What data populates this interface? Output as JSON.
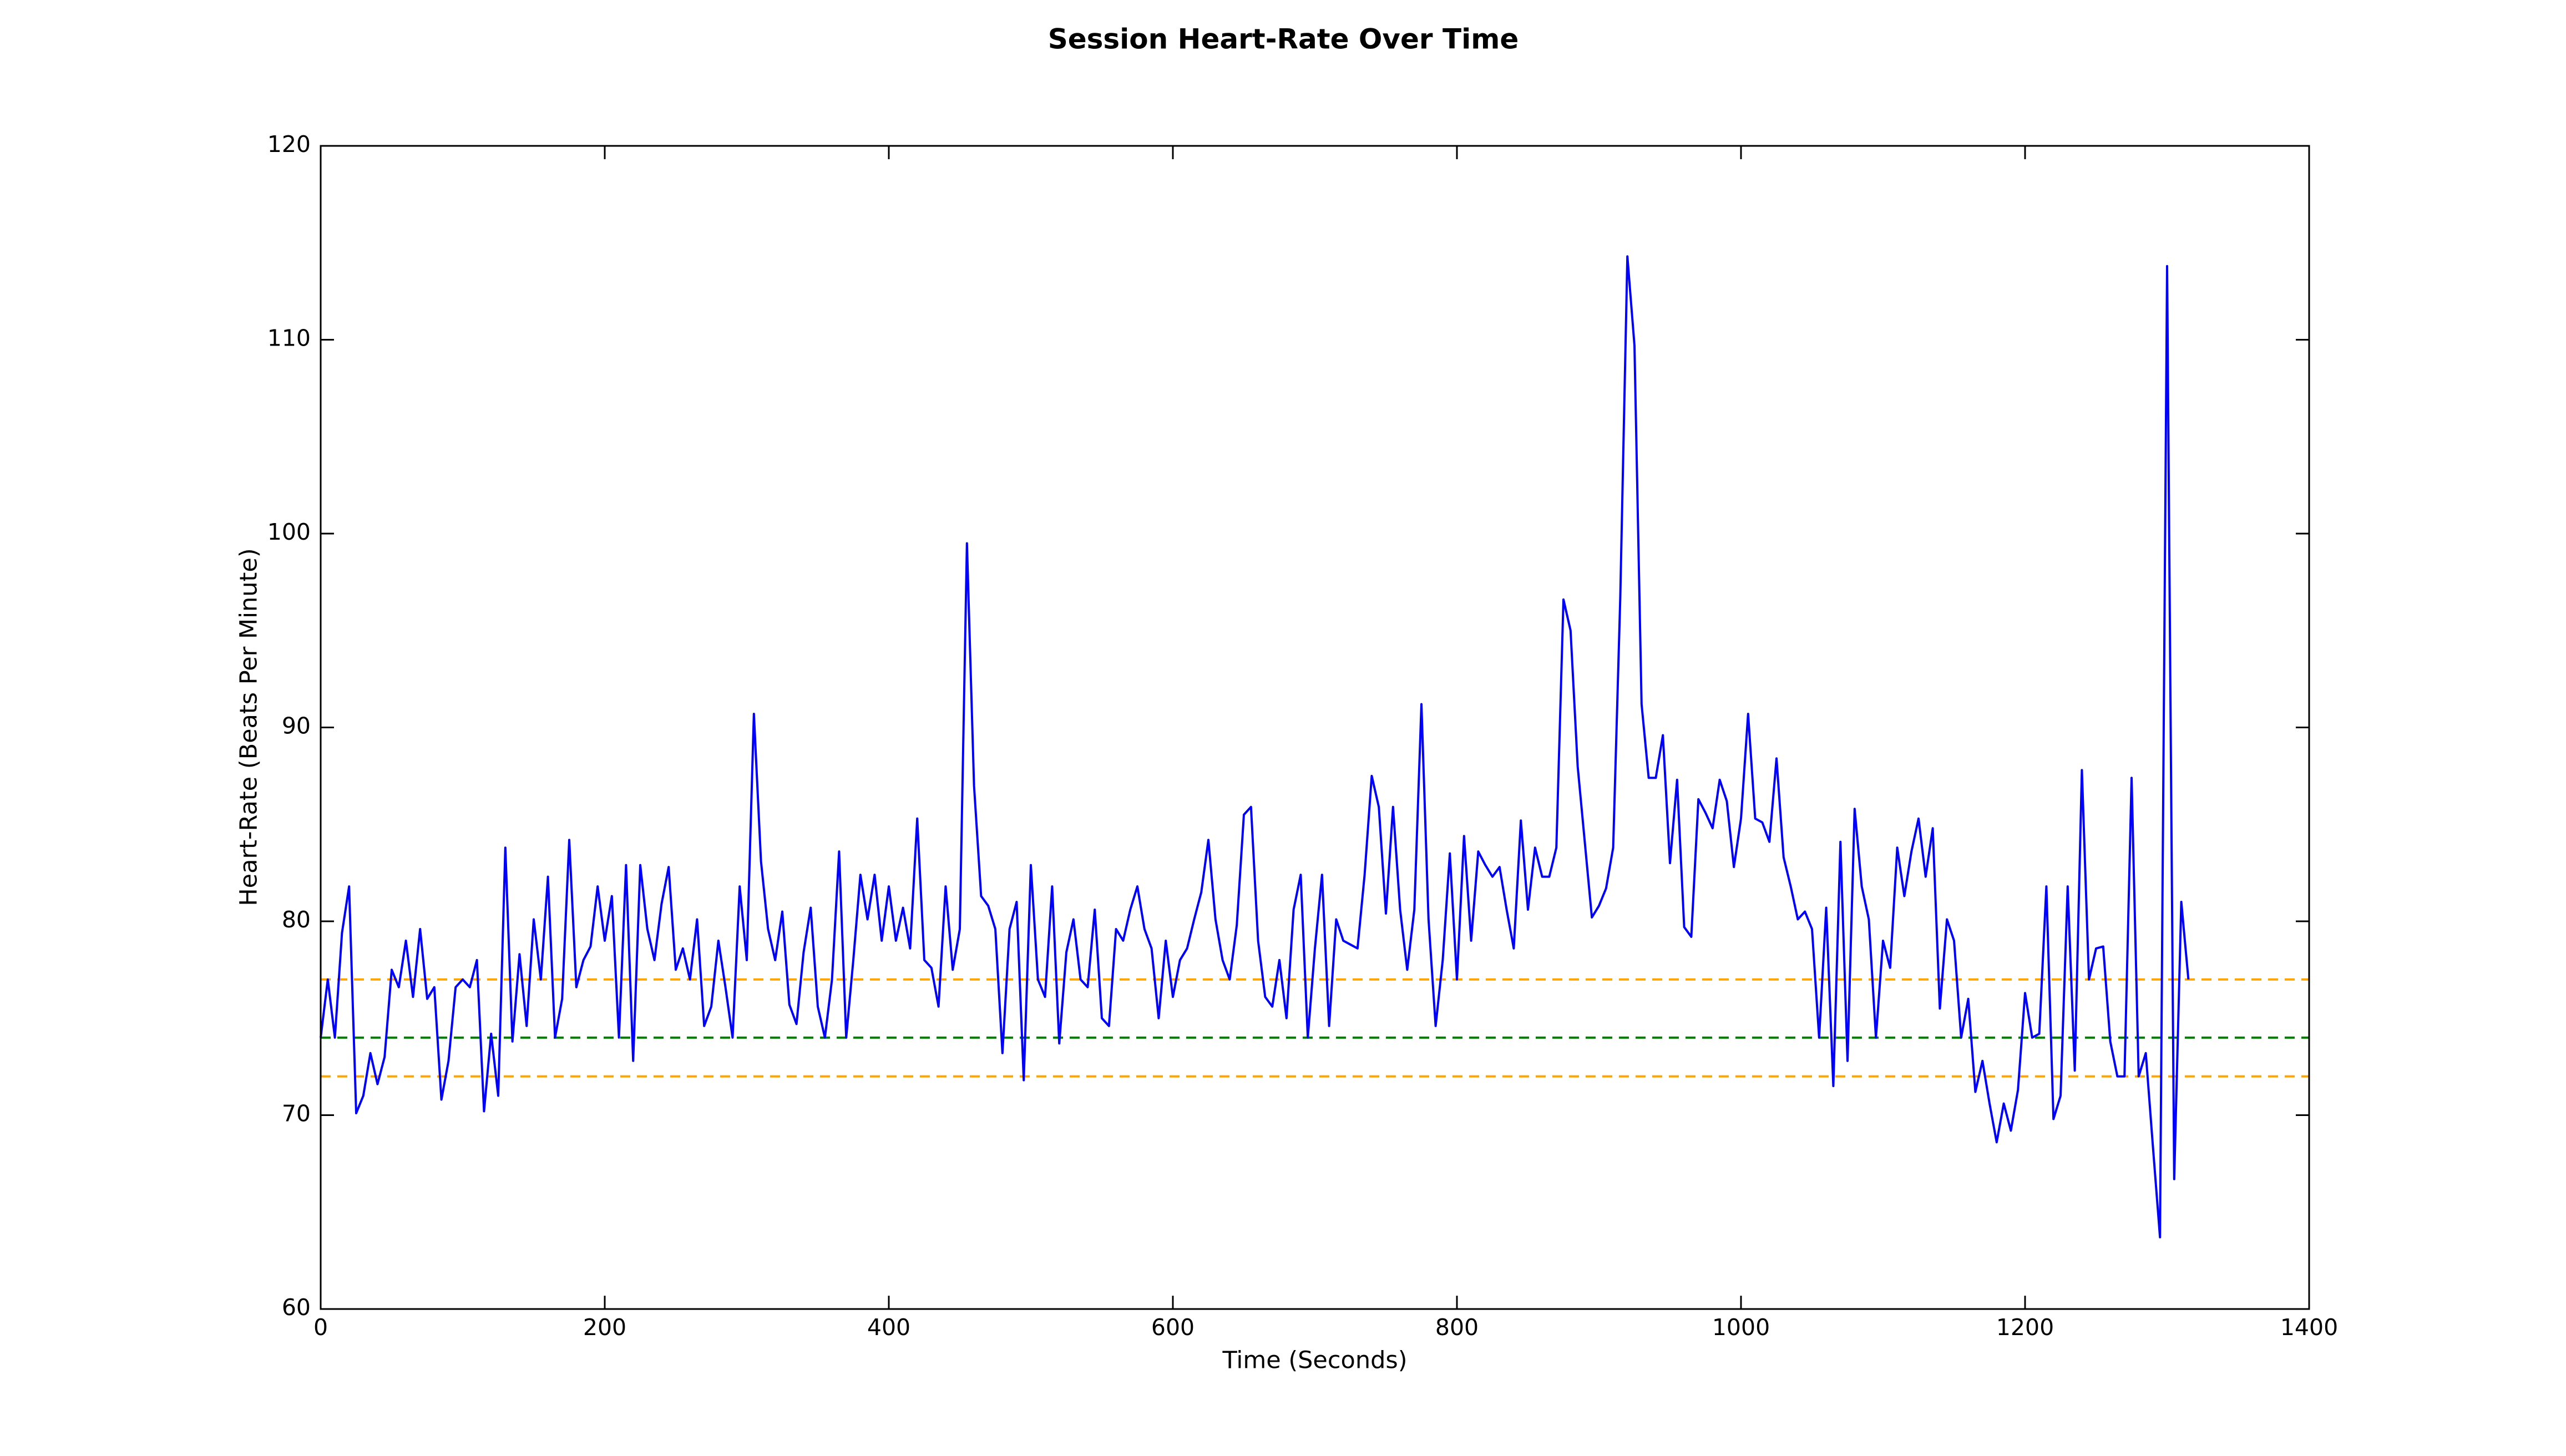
{
  "chart_data": {
    "type": "line",
    "title": "Session Heart-Rate Over Time",
    "x_label": "Time (Seconds)",
    "y_label": "Heart-Rate (Beats Per Minute)",
    "color": "#0000ff",
    "xlim": [
      0,
      1400
    ],
    "xticks": [
      0,
      200,
      400,
      600,
      800,
      1000,
      1200,
      1400
    ],
    "ylim": [
      60,
      120
    ],
    "yticks": [
      60,
      70,
      80,
      90,
      100,
      110,
      120
    ],
    "grid": false,
    "hlines": [
      {
        "value": 77,
        "color": "#ffa500",
        "style": "dashed"
      },
      {
        "value": 74,
        "color": "#008000",
        "style": "dashed"
      },
      {
        "value": 72,
        "color": "#ffa500",
        "style": "dashed"
      }
    ],
    "x": [
      0,
      5,
      10,
      15,
      20,
      25,
      30,
      35,
      40,
      45,
      50,
      55,
      60,
      65,
      70,
      75,
      80,
      85,
      90,
      95,
      100,
      105,
      110,
      115,
      120,
      125,
      130,
      135,
      140,
      145,
      150,
      155,
      160,
      165,
      170,
      175,
      180,
      185,
      190,
      195,
      200,
      205,
      210,
      215,
      220,
      225,
      230,
      235,
      240,
      245,
      250,
      255,
      260,
      265,
      270,
      275,
      280,
      285,
      290,
      295,
      300,
      305,
      310,
      315,
      320,
      325,
      330,
      335,
      340,
      345,
      350,
      355,
      360,
      365,
      370,
      375,
      380,
      385,
      390,
      395,
      400,
      405,
      410,
      415,
      420,
      425,
      430,
      435,
      440,
      445,
      450,
      455,
      460,
      465,
      470,
      475,
      480,
      485,
      490,
      495,
      500,
      505,
      510,
      515,
      520,
      525,
      530,
      535,
      540,
      545,
      550,
      555,
      560,
      565,
      570,
      575,
      580,
      585,
      590,
      595,
      600,
      605,
      610,
      615,
      620,
      625,
      630,
      635,
      640,
      645,
      650,
      655,
      660,
      665,
      670,
      675,
      680,
      685,
      690,
      695,
      700,
      705,
      710,
      715,
      720,
      725,
      730,
      735,
      740,
      745,
      750,
      755,
      760,
      765,
      770,
      775,
      780,
      785,
      790,
      795,
      800,
      805,
      810,
      815,
      820,
      825,
      830,
      835,
      840,
      845,
      850,
      855,
      860,
      865,
      870,
      875,
      880,
      885,
      890,
      895,
      900,
      905,
      910,
      915,
      920,
      925,
      930,
      935,
      940,
      945,
      950,
      955,
      960,
      965,
      970,
      975,
      980,
      985,
      990,
      995,
      1000,
      1005,
      1010,
      1015,
      1020,
      1025,
      1030,
      1035,
      1040,
      1045,
      1050,
      1055,
      1060,
      1065,
      1070,
      1075,
      1080,
      1085,
      1090,
      1095,
      1100,
      1105,
      1110,
      1115,
      1120,
      1125,
      1130,
      1135,
      1140,
      1145,
      1150,
      1155,
      1160,
      1165,
      1170,
      1175,
      1180,
      1185,
      1190,
      1195,
      1200,
      1205,
      1210,
      1215,
      1220,
      1225,
      1230,
      1235,
      1240,
      1245,
      1250,
      1255,
      1260,
      1265,
      1270,
      1275,
      1280,
      1285,
      1290,
      1295,
      1300,
      1305,
      1310,
      1315
    ],
    "values": [
      74,
      77,
      74,
      79.4,
      81.8,
      70.1,
      71,
      73.2,
      71.6,
      73,
      77.5,
      76.6,
      79,
      76.1,
      79.6,
      76,
      76.6,
      70.8,
      72.8,
      76.6,
      77,
      76.6,
      78,
      70.2,
      74.2,
      71,
      83.8,
      73.8,
      78.3,
      74.6,
      80.1,
      77,
      82.3,
      74,
      76,
      84.2,
      76.6,
      78,
      78.7,
      81.8,
      79,
      81.3,
      74,
      82.9,
      72.8,
      82.9,
      79.6,
      78,
      80.9,
      82.8,
      77.5,
      78.6,
      77,
      80.1,
      74.6,
      75.6,
      79,
      76.6,
      74,
      81.8,
      78,
      90.7,
      83.1,
      79.6,
      78,
      80.5,
      75.7,
      74.7,
      78.4,
      80.7,
      75.6,
      74,
      77,
      83.6,
      74,
      78,
      82.4,
      80.1,
      82.4,
      79,
      81.8,
      79,
      80.7,
      78.6,
      85.3,
      78,
      77.6,
      75.6,
      81.8,
      77.5,
      79.6,
      99.5,
      87,
      81.3,
      80.8,
      79.6,
      73.2,
      79.6,
      81,
      71.8,
      82.9,
      77,
      76.1,
      81.8,
      73.7,
      78.4,
      80.1,
      77,
      76.6,
      80.6,
      75,
      74.6,
      79.6,
      79,
      80.6,
      81.8,
      79.6,
      78.6,
      75,
      79,
      76.1,
      78,
      78.6,
      80.1,
      81.5,
      84.2,
      80.1,
      78,
      77,
      79.8,
      85.5,
      85.9,
      79,
      76.1,
      75.6,
      78,
      75,
      80.6,
      82.4,
      74,
      78.6,
      82.4,
      74.6,
      80.1,
      79,
      78.8,
      78.6,
      82.4,
      87.5,
      85.9,
      80.4,
      85.9,
      80.6,
      77.5,
      80.6,
      91.2,
      80.1,
      74.6,
      78,
      83.5,
      77,
      84.4,
      79,
      83.6,
      82.9,
      82.3,
      82.8,
      80.6,
      78.6,
      85.2,
      80.6,
      83.8,
      82.3,
      82.3,
      83.8,
      96.6,
      95,
      88,
      84.1,
      80.2,
      80.8,
      81.7,
      83.8,
      96.7,
      114.3,
      109.7,
      91.2,
      87.4,
      87.4,
      89.6,
      83,
      87.3,
      79.7,
      79.2,
      86.3,
      85.6,
      84.8,
      87.3,
      86.2,
      82.8,
      85.3,
      90.7,
      85.3,
      85.1,
      84.1,
      88.4,
      83.3,
      81.8,
      80.1,
      80.5,
      79.6,
      74,
      80.7,
      71.5,
      84.1,
      72.8,
      85.8,
      81.8,
      80.1,
      74,
      79,
      77.6,
      83.8,
      81.3,
      83.6,
      85.3,
      82.3,
      84.8,
      75.5,
      80.1,
      79,
      74,
      76,
      71.2,
      72.8,
      70.6,
      68.6,
      70.6,
      69.2,
      71.3,
      76.3,
      74,
      74.2,
      81.8,
      69.8,
      71,
      81.8,
      72.3,
      87.8,
      77,
      78.6,
      78.7,
      73.8,
      72,
      72,
      87.4,
      72,
      73.2,
      68.4,
      63.7,
      113.8,
      66.7,
      81,
      77
    ]
  }
}
